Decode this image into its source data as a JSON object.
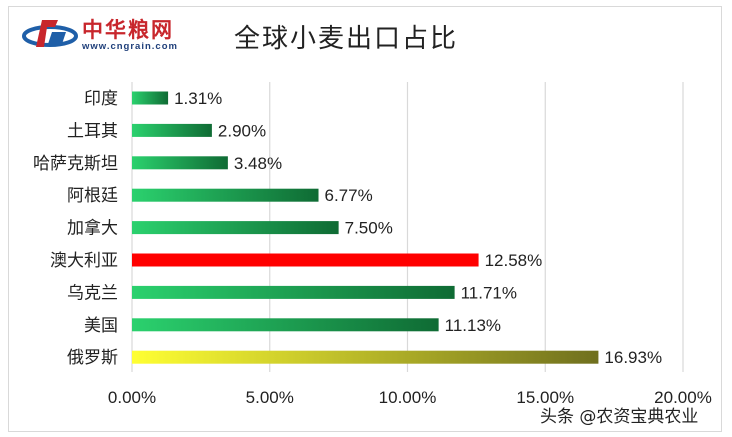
{
  "logo": {
    "name": "中华粮网",
    "url": "www.cngrain.com"
  },
  "watermark": "头条 @农资宝典农业",
  "chart_data": {
    "type": "bar",
    "orientation": "horizontal",
    "title": "全球小麦出口占比",
    "xlabel": "",
    "ylabel": "",
    "xlim": [
      0,
      20
    ],
    "x_ticks": [
      "0.00%",
      "5.00%",
      "10.00%",
      "15.00%",
      "20.00%"
    ],
    "grid": true,
    "categories": [
      "印度",
      "土耳其",
      "哈萨克斯坦",
      "阿根廷",
      "加拿大",
      "澳大利亚",
      "乌克兰",
      "美国",
      "俄罗斯"
    ],
    "values": [
      1.31,
      2.9,
      3.48,
      6.77,
      7.5,
      12.58,
      11.71,
      11.13,
      16.93
    ],
    "value_labels": [
      "1.31%",
      "2.90%",
      "3.48%",
      "6.77%",
      "7.50%",
      "12.58%",
      "11.71%",
      "11.13%",
      "16.93%"
    ],
    "bar_styles": [
      "green",
      "green",
      "green",
      "green",
      "green",
      "red",
      "green",
      "green",
      "yellow"
    ],
    "colors": {
      "green_start": "#2bd16e",
      "green_end": "#0f6b34",
      "red": "#ff0000",
      "yellow_start": "#ffff33",
      "yellow_end": "#6f6f1e",
      "grid": "#d9d9d9",
      "text": "#222222"
    }
  }
}
